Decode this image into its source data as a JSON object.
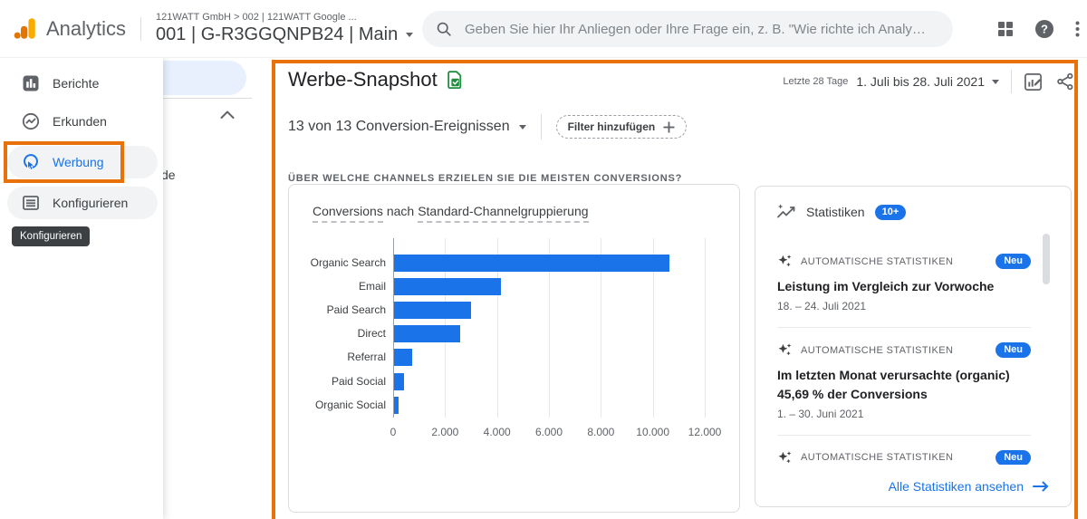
{
  "header": {
    "product_name": "Analytics",
    "breadcrumb": "121WATT GmbH > 002 | 121WATT Google ...",
    "property_selector": "001 | G-R3GGQNPB24 | Main",
    "search_placeholder": "Geben Sie hier Ihr Anliegen oder Ihre Frage ein, z. B. \"Wie richte ich Analy…",
    "help_glyph": "?"
  },
  "sidebar": {
    "items": [
      {
        "label": "Berichte"
      },
      {
        "label": "Erkunden"
      },
      {
        "label": "Werbung",
        "active": true
      },
      {
        "label": "Konfigurieren"
      }
    ],
    "tooltip": "Konfigurieren"
  },
  "subnav": {
    "partial_label": "de"
  },
  "main": {
    "title": "Werbe-Snapshot",
    "date_range_label": "Letzte 28 Tage",
    "date_range": "1. Juli bis 28. Juli 2021",
    "conversion_dropdown": "13 von 13 Conversion-Ereignissen",
    "filter_button": "Filter hinzufügen",
    "section_question": "ÜBER WELCHE CHANNELS ERZIELEN SIE DIE MEISTEN CONVERSIONS?"
  },
  "chart_data": {
    "type": "bar",
    "orientation": "horizontal",
    "title": "Conversions nach Standard-Channelgruppierung",
    "title_term1": "Conversions",
    "title_mid": "nach",
    "title_term2": "Standard-Channelgruppierung",
    "categories": [
      "Organic Search",
      "Email",
      "Paid Search",
      "Direct",
      "Referral",
      "Paid Social",
      "Organic Social"
    ],
    "values": [
      10600,
      4100,
      2980,
      2560,
      700,
      380,
      170
    ],
    "xlim": [
      0,
      12000
    ],
    "x_ticks": [
      {
        "v": 0,
        "label": "0"
      },
      {
        "v": 2000,
        "label": "2.000"
      },
      {
        "v": 4000,
        "label": "4.000"
      },
      {
        "v": 6000,
        "label": "6.000"
      },
      {
        "v": 8000,
        "label": "8.000"
      },
      {
        "v": 10000,
        "label": "10.000"
      },
      {
        "v": 12000,
        "label": "12.000"
      }
    ],
    "grid": true,
    "legend": false,
    "bar_color": "#1a73e8"
  },
  "insights": {
    "title": "Statistiken",
    "badge": "10+",
    "cards": [
      {
        "kicker": "AUTOMATISCHE STATISTIKEN",
        "badge": "Neu",
        "title": "Leistung im Vergleich zur Vorwoche",
        "date": "18. – 24. Juli 2021"
      },
      {
        "kicker": "AUTOMATISCHE STATISTIKEN",
        "badge": "Neu",
        "title": "Im letzten Monat verursachte (organic) 45,69 % der Conversions",
        "date": "1. – 30. Juni 2021"
      },
      {
        "kicker": "AUTOMATISCHE STATISTIKEN",
        "badge": "Neu",
        "title": "",
        "date": ""
      }
    ],
    "footer_link": "Alle Statistiken ansehen"
  },
  "colors": {
    "accent-blue": "#1a73e8",
    "annotation-orange": "#e8710a",
    "green": "#1e8e3e",
    "pill-blue": "#e8f0fe",
    "chip-gray": "#f1f3f4"
  }
}
